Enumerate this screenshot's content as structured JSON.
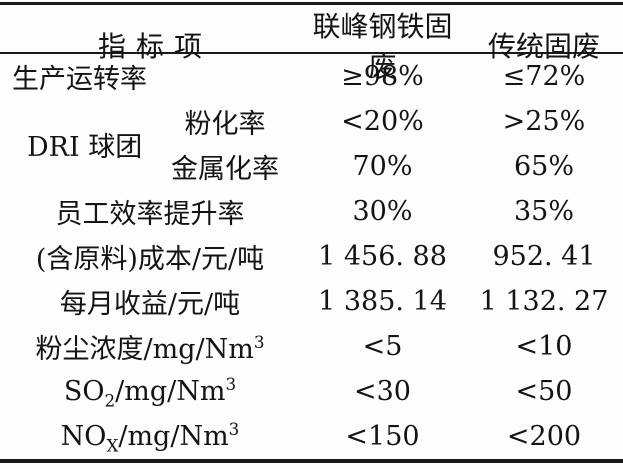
{
  "colors": {
    "background": "#fdfdfd",
    "text": "#141414",
    "rule": "#1a1a1a"
  },
  "table": {
    "header": {
      "col1": "指标项",
      "col2": "联峰钢铁固废",
      "col3": "传统固废"
    },
    "rows": {
      "production": {
        "label": "生产运转率",
        "lianfeng": "≥98%",
        "traditional": "≤72%"
      },
      "dri": {
        "group_label": "DRI 球团",
        "pulverization": {
          "label": "粉化率",
          "lianfeng": "<20%",
          "traditional": ">25%"
        },
        "metallization": {
          "label": "金属化率",
          "lianfeng": "70%",
          "traditional": "65%"
        }
      },
      "staff_efficiency": {
        "label": "员工效率提升率",
        "lianfeng": "30%",
        "traditional": "35%"
      },
      "cost": {
        "label": "(含原料)成本/元/吨",
        "lianfeng": "1 456. 88",
        "traditional": "952. 41"
      },
      "monthly_income": {
        "label": "每月收益/元/吨",
        "lianfeng": "1 385. 14",
        "traditional": "1 132. 27"
      },
      "dust": {
        "pre": "粉尘浓度/mg/Nm",
        "sub": "",
        "mid": "",
        "sup": "3",
        "lianfeng": "<5",
        "traditional": "<10"
      },
      "so2": {
        "pre": "SO",
        "sub": "2",
        "mid": "/mg/Nm",
        "sup": "3",
        "lianfeng": "<30",
        "traditional": "<50"
      },
      "nox": {
        "pre": "NO",
        "sub": "X",
        "mid": "/mg/Nm",
        "sup": "3",
        "lianfeng": "<150",
        "traditional": "<200"
      }
    }
  }
}
